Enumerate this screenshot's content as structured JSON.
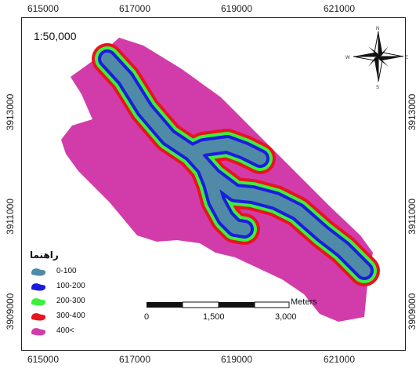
{
  "map": {
    "scale": "1:50,000",
    "x_ticks": [
      "615000",
      "617000",
      "619000",
      "621000"
    ],
    "y_ticks": [
      "3913000",
      "3911000",
      "3909000"
    ],
    "y_ticks_right": [
      "3913000",
      "3911000",
      "3909000"
    ]
  },
  "compass": {
    "n": "N",
    "s": "S",
    "e": "E",
    "w": "W"
  },
  "legend": {
    "title": "راهنما",
    "items": [
      {
        "label": "0-100",
        "color": "#4f8aa6"
      },
      {
        "label": "100-200",
        "color": "#1c1ce0"
      },
      {
        "label": "200-300",
        "color": "#3cf03c"
      },
      {
        "label": "300-400",
        "color": "#e8141e"
      },
      {
        "label": "400<",
        "color": "#d23caa"
      }
    ]
  },
  "scalebar": {
    "unit": "Meters",
    "labels": [
      "0",
      "1,500",
      "3,000"
    ]
  }
}
